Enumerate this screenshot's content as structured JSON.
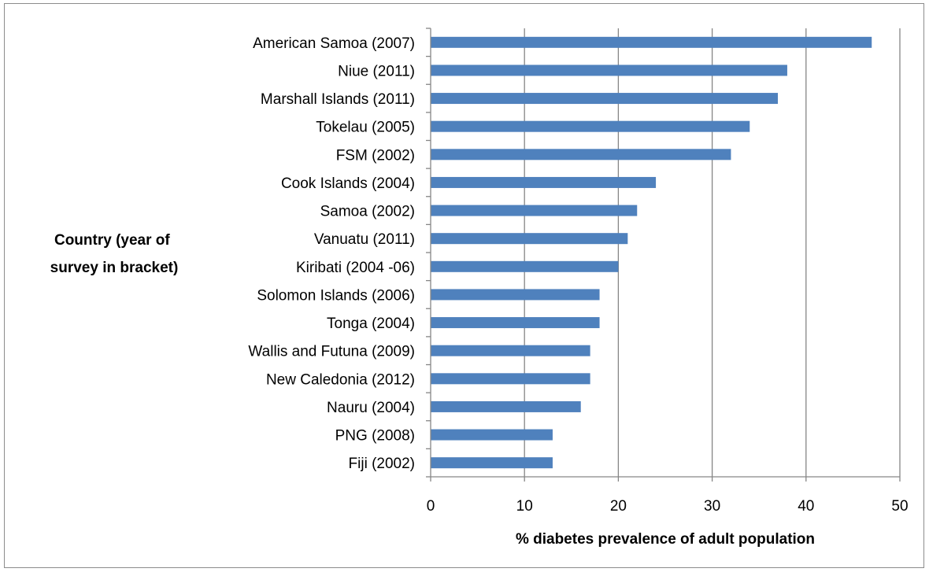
{
  "chart_data": {
    "type": "bar",
    "orientation": "horizontal",
    "categories": [
      "American Samoa (2007)",
      "Niue (2011)",
      "Marshall Islands (2011)",
      "Tokelau (2005)",
      "FSM (2002)",
      "Cook Islands (2004)",
      "Samoa (2002)",
      "Vanuatu (2011)",
      "Kiribati (2004 -06)",
      "Solomon Islands (2006)",
      "Tonga (2004)",
      "Wallis and Futuna (2009)",
      "New Caledonia (2012)",
      "Nauru (2004)",
      "PNG (2008)",
      "Fiji (2002)"
    ],
    "values": [
      47,
      38,
      37,
      34,
      32,
      24,
      22,
      21,
      20,
      18,
      18,
      17,
      17,
      16,
      13,
      13
    ],
    "xlabel": "% diabetes prevalence of adult population",
    "ylabel_lines": [
      "Country (year of",
      "survey in bracket)"
    ],
    "xlim": [
      0,
      50
    ],
    "xticks": [
      "0",
      "10",
      "20",
      "30",
      "40",
      "50"
    ],
    "grid": "vertical major gridlines",
    "legend": "none",
    "bar_color": "#4F81BD",
    "gridline_color": "#868686"
  }
}
